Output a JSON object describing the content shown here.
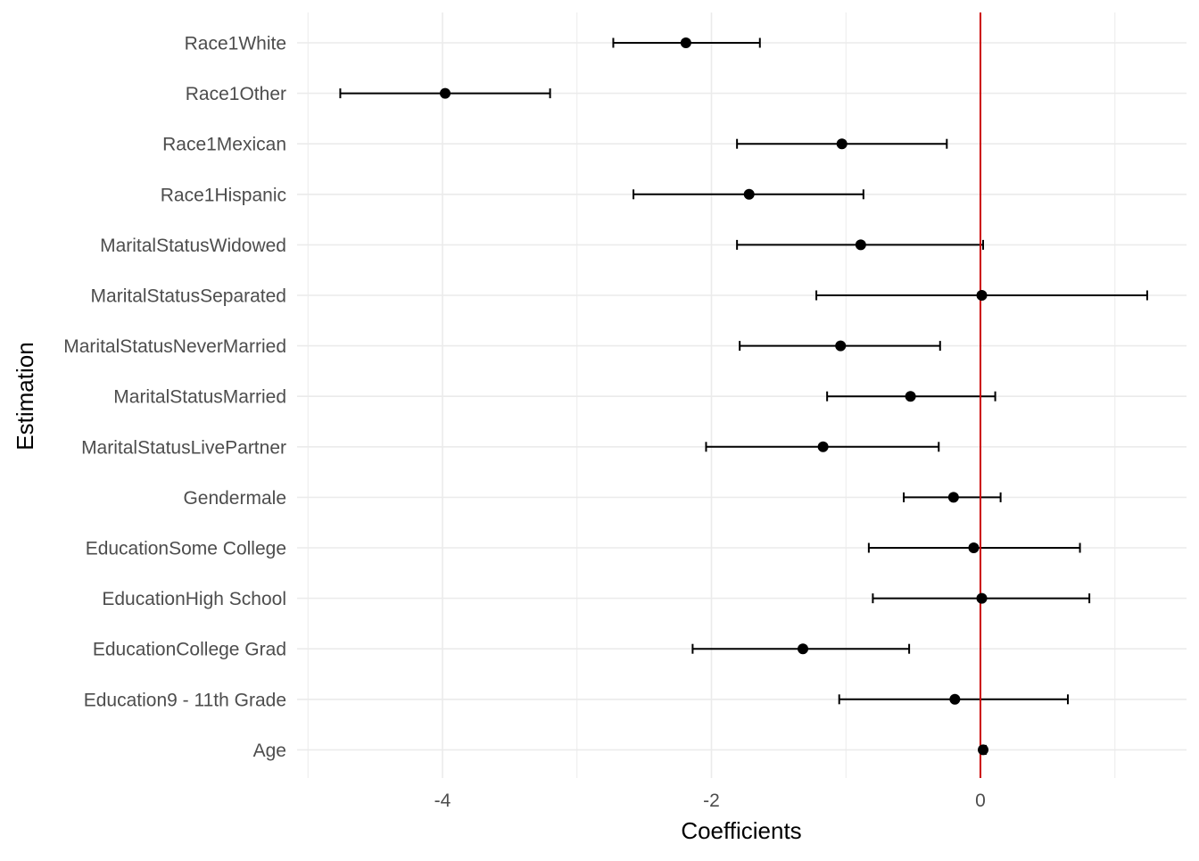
{
  "chart_data": {
    "type": "scatter",
    "title": "",
    "xlabel": "Coefficients",
    "ylabel": "Estimation",
    "xlim": [
      -5.0,
      1.3
    ],
    "x_ticks": [
      -4,
      -2,
      0
    ],
    "x_tick_labels": [
      "-4",
      "-2",
      "0"
    ],
    "reference_line": {
      "x": 0,
      "color": "#cc0000"
    },
    "grid": true,
    "legend": "none",
    "categories": [
      "Race1White",
      "Race1Other",
      "Race1Mexican",
      "Race1Hispanic",
      "MaritalStatusWidowed",
      "MaritalStatusSeparated",
      "MaritalStatusNeverMarried",
      "MaritalStatusMarried",
      "MaritalStatusLivePartner",
      "Gendermale",
      "EducationSome College",
      "EducationHigh School",
      "EducationCollege Grad",
      "Education9 - 11th Grade",
      "Age"
    ],
    "estimates": [
      -2.19,
      -3.98,
      -1.03,
      -1.72,
      -0.89,
      0.01,
      -1.04,
      -0.52,
      -1.17,
      -0.2,
      -0.05,
      0.01,
      -1.32,
      -0.19,
      0.02
    ],
    "lower": [
      -2.73,
      -4.76,
      -1.81,
      -2.58,
      -1.81,
      -1.22,
      -1.79,
      -1.14,
      -2.04,
      -0.57,
      -0.83,
      -0.8,
      -2.14,
      -1.05,
      0.0
    ],
    "upper": [
      -1.64,
      -3.2,
      -0.25,
      -0.87,
      0.02,
      1.24,
      -0.3,
      0.11,
      -0.31,
      0.15,
      0.74,
      0.81,
      -0.53,
      0.65,
      0.04
    ],
    "point_color": "#000000",
    "errorbar_color": "#000000"
  }
}
